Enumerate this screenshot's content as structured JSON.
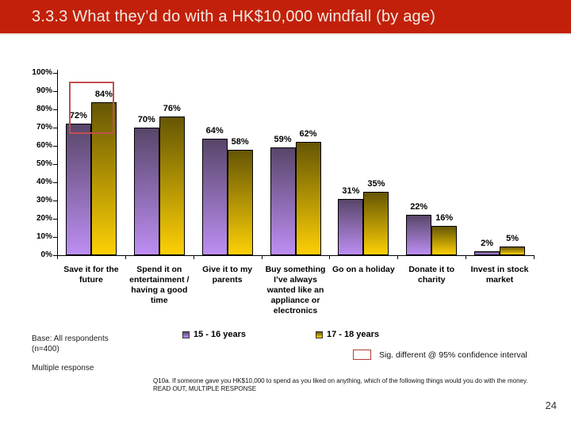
{
  "colors": {
    "header_red": "#c2200a",
    "annotation_red": "#b03a36",
    "highlight_red": "#c0504d"
  },
  "header": {
    "title": "3.3.3 What they’d do with a HK$10,000 windfall (by age)"
  },
  "chart_data": {
    "type": "bar",
    "title": "",
    "xlabel": "",
    "ylabel": "",
    "ylim": [
      0,
      100
    ],
    "ytick_step": 10,
    "ytick_labels": [
      "0%",
      "10%",
      "20%",
      "30%",
      "40%",
      "50%",
      "60%",
      "70%",
      "80%",
      "90%",
      "100%"
    ],
    "grid": false,
    "legend_position": "bottom",
    "value_suffix": "%",
    "categories": [
      "Save it for the\nfuture",
      "Spend it on\nentertainment /\nhaving a good\ntime",
      "Give it to my\nparents",
      "Buy something\nI’ve always\nwanted like an\nappliance or\nelectronics",
      "Go on a holiday",
      "Donate it to\ncharity",
      "Invest in stock\nmarket"
    ],
    "series": [
      {
        "name": "15 - 16 years",
        "color_top": "#584669",
        "color_bottom": "#bd8ef3",
        "values": [
          72,
          70,
          64,
          59,
          31,
          22,
          2
        ]
      },
      {
        "name": "17 - 18 years",
        "color_top": "#665604",
        "color_bottom": "#fdd005",
        "values": [
          84,
          76,
          58,
          62,
          35,
          16,
          5
        ]
      }
    ],
    "highlight": {
      "group_index": 0
    }
  },
  "annotations": {
    "sig_box_label": "Sig. different @ 95% confidence interval"
  },
  "footer": {
    "base_line1": "Base: All respondents",
    "base_line2": "(n=400)",
    "multiple": "Multiple response",
    "question_line1": "Q10a. If someone gave you HK$10,000 to spend as you liked on anything, which of the following things would you do with the money.",
    "question_line2": "READ OUT, MULTIPLE RESPONSE",
    "page_number": "24"
  }
}
